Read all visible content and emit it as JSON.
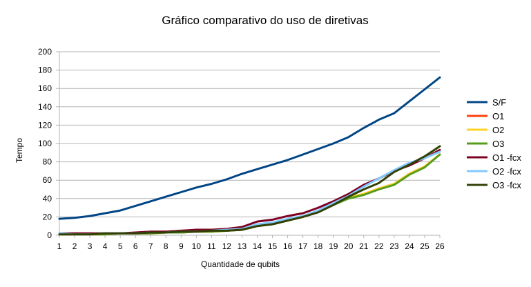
{
  "chart_data": {
    "type": "line",
    "title": "Gráfico comparativo do uso de diretivas",
    "xlabel": "Quantidade de qubits",
    "ylabel": "Tempo",
    "x": [
      1,
      2,
      3,
      4,
      5,
      6,
      7,
      8,
      9,
      10,
      11,
      12,
      13,
      14,
      15,
      16,
      17,
      18,
      19,
      20,
      21,
      22,
      23,
      24,
      25,
      26
    ],
    "ylim": [
      0,
      200
    ],
    "yticks": [
      0,
      20,
      40,
      60,
      80,
      100,
      120,
      140,
      160,
      180,
      200
    ],
    "grid": "horizontal",
    "legend_position": "right",
    "series": [
      {
        "name": "S/F",
        "color": "#004586",
        "values": [
          18,
          19,
          21,
          24,
          27,
          32,
          37,
          42,
          47,
          52,
          56,
          61,
          67,
          72,
          77,
          82,
          88,
          94,
          100,
          107,
          117,
          126,
          133,
          146,
          159,
          172
        ]
      },
      {
        "name": "O1",
        "color": "#ff420e",
        "values": [
          1,
          1,
          1,
          1,
          2,
          2,
          2,
          3,
          3,
          4,
          4,
          5,
          6,
          10,
          12,
          16,
          20,
          26,
          33,
          41,
          45,
          51,
          56,
          67,
          75,
          88
        ]
      },
      {
        "name": "O2",
        "color": "#ffd320",
        "values": [
          1,
          1,
          1,
          1,
          2,
          2,
          2,
          3,
          3,
          4,
          4,
          5,
          6,
          10,
          12,
          16,
          20,
          26,
          33,
          41,
          45,
          51,
          56,
          67,
          75,
          88
        ]
      },
      {
        "name": "O3",
        "color": "#579d1c",
        "values": [
          1,
          1,
          1,
          1,
          2,
          2,
          2,
          3,
          3,
          4,
          4,
          5,
          6,
          10,
          12,
          16,
          20,
          26,
          33,
          40,
          44,
          50,
          55,
          66,
          74,
          88
        ]
      },
      {
        "name": "O1 -fcx",
        "color": "#7e0021",
        "values": [
          2,
          2,
          2,
          2,
          2,
          3,
          4,
          4,
          5,
          6,
          6,
          7,
          9,
          15,
          17,
          21,
          24,
          30,
          37,
          45,
          55,
          62,
          70,
          76,
          84,
          93
        ]
      },
      {
        "name": "O2 -fcx",
        "color": "#83caff",
        "values": [
          2,
          1,
          1,
          2,
          2,
          2,
          3,
          3,
          4,
          4,
          5,
          6,
          7,
          12,
          14,
          18,
          21,
          27,
          35,
          43,
          53,
          62,
          71,
          79,
          84,
          91
        ]
      },
      {
        "name": "O3 -fcx",
        "color": "#314004",
        "values": [
          1,
          1,
          1,
          2,
          2,
          2,
          3,
          3,
          4,
          4,
          5,
          5,
          6,
          10,
          12,
          16,
          20,
          25,
          33,
          42,
          50,
          57,
          69,
          77,
          86,
          97
        ]
      }
    ]
  }
}
